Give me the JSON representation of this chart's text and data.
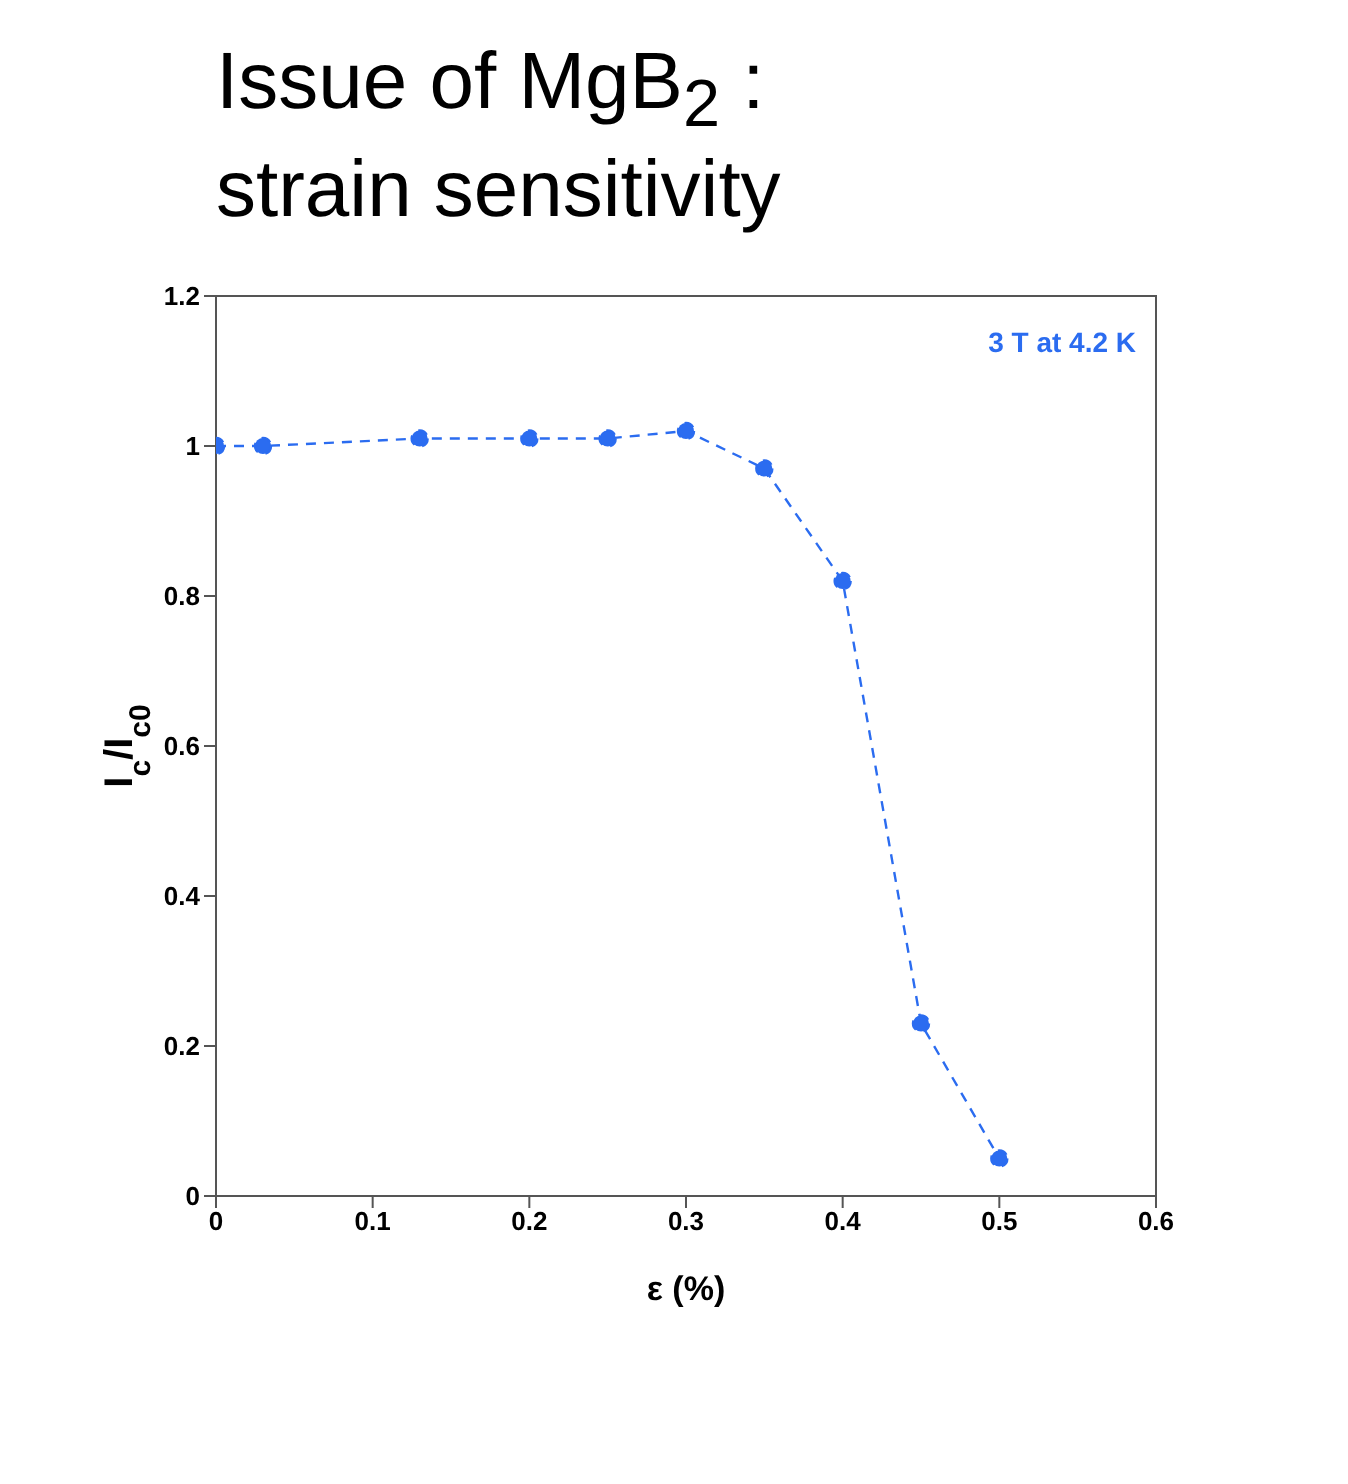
{
  "chart_data": {
    "type": "line",
    "title": "Issue of MgB$_{2}$ :\nstrain sensitivity",
    "xlabel": "ε (%)",
    "ylabel": "I$_{c}$/I$_{c0}$",
    "annotations": [
      "3 T at 4.2 K"
    ],
    "x": [
      0,
      0.03,
      0.13,
      0.2,
      0.25,
      0.3,
      0.35,
      0.4,
      0.45,
      0.5
    ],
    "series": [
      {
        "color": "#2b6cf0",
        "values": [
          1.0,
          1.0,
          1.01,
          1.01,
          1.01,
          1.02,
          0.97,
          0.82,
          0.23,
          0.05
        ]
      }
    ],
    "xlim": [
      0,
      0.6
    ],
    "xticks": [
      0,
      0.1,
      0.2,
      0.3,
      0.4,
      0.5,
      0.6
    ],
    "ylim": [
      0,
      1.2
    ],
    "yticks": [
      0,
      0.2,
      0.4,
      0.6,
      0.8,
      1,
      1.2
    ],
    "marker": "circle",
    "line_style": "dashed"
  }
}
